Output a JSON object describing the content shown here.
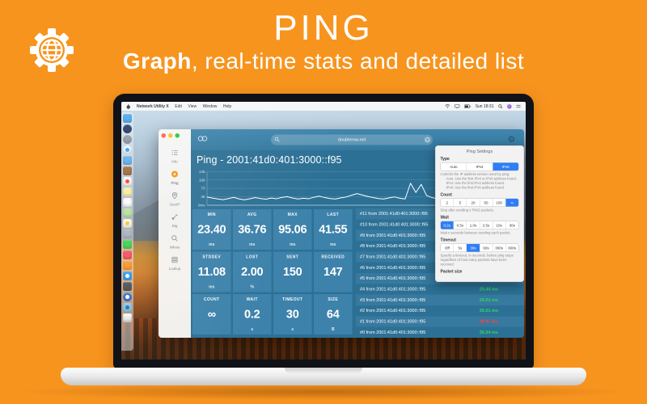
{
  "header": {
    "title": "PING",
    "subtitle_bold": "Graph",
    "subtitle_rest": ", real-time stats and detailed list"
  },
  "menu_bar": {
    "app_name": "Network Utility X",
    "menus": [
      "Edit",
      "View",
      "Window",
      "Help"
    ],
    "status_icons": [
      "wifi-icon",
      "display-icon",
      "battery-icon"
    ],
    "clock": "Sun 18:31",
    "right_icons": [
      "search-icon",
      "siri-icon",
      "notification-list-icon"
    ]
  },
  "dock": {
    "icons": [
      {
        "name": "finder",
        "color": "#4aa5ef",
        "shape": "square"
      },
      {
        "name": "siri",
        "color": "#243a66",
        "shape": "circle"
      },
      {
        "name": "launchpad",
        "color": "#9099a4",
        "shape": "circle"
      },
      {
        "name": "safari",
        "color": "#f2f5f8",
        "shape": "circle",
        "dot": "#2aa4f4"
      },
      {
        "name": "mail",
        "color": "#61aeea",
        "shape": "square"
      },
      {
        "name": "contacts",
        "color": "#a06b3a",
        "shape": "square"
      },
      {
        "name": "calendar",
        "color": "#f7f7f7",
        "shape": "square",
        "dot": "#ff3b30"
      },
      {
        "name": "notes",
        "color": "#f7ef9e",
        "shape": "square"
      },
      {
        "name": "reminders",
        "color": "#fbfbfb",
        "shape": "square"
      },
      {
        "name": "maps",
        "color": "#b8e09a",
        "shape": "square"
      },
      {
        "name": "photos",
        "color": "#f6f6f6",
        "shape": "square",
        "dot": "#ffcc00"
      },
      {
        "name": "icloud",
        "color": "#a9b2bc",
        "shape": "square"
      },
      {
        "name": "messages",
        "color": "#3fd14f",
        "shape": "square"
      },
      {
        "name": "music",
        "color": "#f64f63",
        "shape": "square"
      },
      {
        "name": "books",
        "color": "#ff9326",
        "shape": "square"
      },
      {
        "name": "app-store",
        "color": "#2d9cf2",
        "shape": "square",
        "dot": "#ffffff"
      },
      {
        "name": "utilities",
        "color": "#4e5257",
        "shape": "square"
      },
      {
        "name": "network-utility-x",
        "color": "#2e73dc",
        "shape": "circle",
        "dot": "#ffffff"
      },
      {
        "name": "network-utility-x-active",
        "color": "#84c6ee",
        "shape": "square",
        "dot": "#2e6fa8"
      },
      {
        "name": "trash",
        "color": "#e6edf3",
        "shape": "trash"
      }
    ]
  },
  "window": {
    "sidebar": [
      {
        "label": "Info",
        "icon": "info-icon",
        "active": false
      },
      {
        "label": "Ping",
        "icon": "ping-icon",
        "active": true
      },
      {
        "label": "GeoIP",
        "icon": "geoip-pin-icon",
        "active": false
      },
      {
        "label": "Dig",
        "icon": "dig-shovel-icon",
        "active": false
      },
      {
        "label": "Whois",
        "icon": "whois-magnifier-icon",
        "active": false
      },
      {
        "label": "Lookup",
        "icon": "lookup-stack-icon",
        "active": false
      }
    ],
    "toolbar": {
      "search_value": "doublerow.net"
    },
    "title": "Ping - 2001:41d0:401:3000::f95",
    "stats": [
      {
        "label": "MIN",
        "value": "23.40",
        "unit": "ms"
      },
      {
        "label": "AVG",
        "value": "36.76",
        "unit": "ms"
      },
      {
        "label": "MAX",
        "value": "95.06",
        "unit": "ms"
      },
      {
        "label": "LAST",
        "value": "41.55",
        "unit": "ms"
      },
      {
        "label": "STDDEV",
        "value": "11.08",
        "unit": "ms"
      },
      {
        "label": "LOST",
        "value": "2.00",
        "unit": "%"
      },
      {
        "label": "SENT",
        "value": "150",
        "unit": ""
      },
      {
        "label": "RECEIVED",
        "value": "147",
        "unit": ""
      },
      {
        "label": "COUNT",
        "value": "∞",
        "unit": ""
      },
      {
        "label": "WAIT",
        "value": "0.2",
        "unit": "s"
      },
      {
        "label": "TIMEOUT",
        "value": "30",
        "unit": "s"
      },
      {
        "label": "SIZE",
        "value": "64",
        "unit": "B"
      }
    ],
    "list_rows": [
      {
        "text": "#11 from 2001:41d0:401:3000::f95",
        "time": "",
        "status": ""
      },
      {
        "text": "#10 from 2001:41d0:401:3000::f95",
        "time": "",
        "status": ""
      },
      {
        "text": "#9 from 2001:41d0:401:3000::f95",
        "time": "",
        "status": ""
      },
      {
        "text": "#8 from 2001:41d0:401:3000::f95",
        "time": "",
        "status": ""
      },
      {
        "text": "#7 from 2001:41d0:401:3000::f95",
        "time": "",
        "status": ""
      },
      {
        "text": "#6 from 2001:41d0:401:3000::f95",
        "time": "",
        "status": ""
      },
      {
        "text": "#5 from 2001:41d0:401:3000::f95",
        "time": "",
        "status": ""
      },
      {
        "text": "#4 from 2001:41d0:401:3000::f95",
        "time": "25.44 ms",
        "status": "success"
      },
      {
        "text": "#3 from 2001:41d0:401:3000::f95",
        "time": "25.01 ms",
        "status": "success"
      },
      {
        "text": "#2 from 2001:41d0:401:3000::f95",
        "time": "35.01 ms",
        "status": "success"
      },
      {
        "text": "#1 from 2001:41d0:401:3000::f95",
        "time": "98.97 ms",
        "status": "high"
      },
      {
        "text": "#0 from 2001:41d0:401:3000::f95",
        "time": "35.34 ms",
        "status": "success"
      }
    ]
  },
  "chart_data": {
    "type": "line",
    "title": "Ping - 2001:41d0:401:3000::f95",
    "ylabel": "ms",
    "ylim": [
      0,
      150
    ],
    "y_ticks": [
      145,
      109,
      73,
      36,
      0
    ],
    "y_tick_labels": [
      "145",
      "109",
      "73",
      "36",
      "0ms"
    ],
    "grid": true,
    "legend": false,
    "points": [
      36,
      31,
      27,
      24,
      29,
      34,
      27,
      23.4,
      28,
      33,
      29,
      26,
      31,
      28,
      34,
      37,
      31,
      27,
      30,
      28,
      35,
      39,
      33,
      29,
      27,
      32,
      36,
      43,
      50,
      44,
      38,
      33,
      29,
      27,
      32,
      36,
      30,
      27,
      95,
      55,
      90,
      42,
      33,
      28,
      32,
      27,
      30,
      34,
      29,
      33,
      37,
      31,
      28,
      35,
      30,
      27,
      34,
      41,
      46
    ]
  },
  "popover": {
    "title": "Ping Settings",
    "sections": [
      {
        "label": "Type",
        "options": [
          "Auto",
          "IPv4",
          "IPv6"
        ],
        "selected": 2,
        "help": [
          "Controls the IP address version used by ping:",
          "Auto: Use the first IPv4 or IPv6 address found.",
          "IPv4: Use the first IPv4 address found.",
          "IPv6: Use the first IPv6 address found."
        ]
      },
      {
        "label": "Count",
        "options": [
          "2",
          "5",
          "20",
          "50",
          "100",
          "∞"
        ],
        "selected": 5,
        "help": [
          "Stop after sending x PING packets."
        ]
      },
      {
        "label": "Wait",
        "options": [
          "0.2s",
          "0.5s",
          "1.0s",
          "2.5s",
          "10s",
          "30s"
        ],
        "selected": 0,
        "help": [
          "Wait x seconds between sending each packet."
        ]
      },
      {
        "label": "Timeout",
        "options": [
          "Off",
          "5s",
          "30s",
          "60s",
          "300s",
          "600s"
        ],
        "selected": 2,
        "help": [
          "Specify a timeout, in seconds, before ping stops regardless of how many packets have been received."
        ]
      },
      {
        "label": "Packet size",
        "options": [],
        "selected": -1,
        "help": []
      }
    ]
  },
  "colors": {
    "background": "#f7941e",
    "toolbar": "#35799f",
    "content": "#2c7095",
    "tile": "#3d82ab",
    "segment_selected": "#2f7ef7",
    "time_success": "#30d964",
    "time_high": "#ff453a",
    "traffic": [
      "#ff5f57",
      "#febc2e",
      "#28c840"
    ]
  }
}
